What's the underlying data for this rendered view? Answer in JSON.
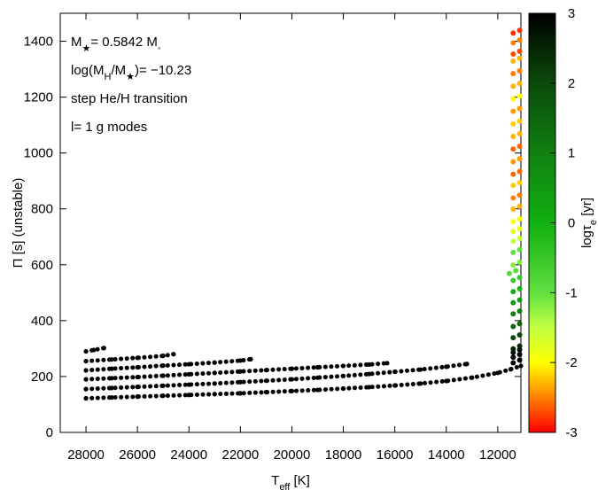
{
  "chart_data": {
    "type": "scatter",
    "annotations": [
      [
        {
          "text": "M"
        },
        {
          "text": "★",
          "sub": true
        },
        {
          "text": "= 0.5842 M"
        },
        {
          "text": "◦",
          "sub": true
        }
      ],
      [
        {
          "text": "log(M"
        },
        {
          "text": "H",
          "sub": true
        },
        {
          "text": "/M"
        },
        {
          "text": "★",
          "sub": true
        },
        {
          "text": ")= −10.23"
        }
      ],
      [
        {
          "text": "step He/H transition"
        }
      ],
      [
        {
          "text": "l= 1 g modes"
        }
      ]
    ],
    "x_label": [
      {
        "text": "T"
      },
      {
        "text": "eff",
        "sub": true
      },
      {
        "text": " [K]"
      }
    ],
    "y_label": [
      {
        "text": "Π [s] (unstable)"
      }
    ],
    "xlim": [
      29000,
      11100
    ],
    "ylim": [
      0,
      1500
    ],
    "xticks": [
      28000,
      26000,
      24000,
      22000,
      20000,
      18000,
      16000,
      14000,
      12000
    ],
    "yticks": [
      0,
      200,
      400,
      600,
      800,
      1000,
      1200,
      1400
    ],
    "series": [
      {
        "color": "#000000",
        "x": [
          28000,
          27000,
          26000,
          25000,
          24000,
          23000,
          22000,
          21000,
          20000,
          19000,
          18000,
          17000,
          16000,
          15000,
          14000,
          13000,
          12000,
          11500,
          11100
        ],
        "y": [
          122,
          125,
          128,
          131,
          134,
          137,
          140,
          144,
          148,
          152,
          157,
          162,
          168,
          175,
          184,
          196,
          213,
          226,
          238
        ]
      },
      {
        "color": "#000000",
        "x": [
          28000,
          27000,
          26000,
          25000,
          24000,
          23000,
          22000,
          21000,
          20000,
          19000,
          18000,
          17000,
          16000,
          15000,
          14000,
          13200
        ],
        "y": [
          155,
          159,
          163,
          167,
          171,
          175,
          180,
          185,
          190,
          196,
          202,
          209,
          217,
          225,
          235,
          245
        ]
      },
      {
        "color": "#000000",
        "x": [
          28000,
          27000,
          26000,
          25000,
          24000,
          23000,
          22000,
          21000,
          20000,
          19000,
          18000,
          17000,
          16300
        ],
        "y": [
          190,
          194,
          198,
          203,
          208,
          213,
          218,
          223,
          228,
          233,
          238,
          243,
          248
        ]
      },
      {
        "color": "#000000",
        "x": [
          28000,
          27000,
          26000,
          25000,
          24000,
          23000,
          22000,
          21600
        ],
        "y": [
          222,
          228,
          233,
          239,
          244,
          250,
          257,
          262
        ]
      },
      {
        "color": "#000000",
        "x": [
          28000,
          27000,
          26000,
          25000,
          24600
        ],
        "y": [
          255,
          261,
          267,
          274,
          280
        ]
      },
      {
        "color": "#000000",
        "x": [
          28000,
          27700,
          27300
        ],
        "y": [
          290,
          295,
          302
        ]
      }
    ],
    "points": {
      "x": [
        11400,
        11150,
        11400,
        11150,
        11400,
        11150,
        11400,
        11150,
        11400,
        11150,
        11400,
        11150,
        11400,
        11150,
        11400,
        11150,
        11400,
        11150,
        11400,
        11150,
        11550,
        11300,
        11400,
        11150,
        11400,
        11150,
        11400,
        11150,
        11400,
        11150,
        11400,
        11150,
        11400,
        11150,
        11400,
        11150,
        11400,
        11150,
        11400,
        11150,
        11400,
        11150,
        11400,
        11150,
        11400,
        11150,
        11400,
        11150,
        11400,
        11150,
        11400,
        11150,
        11400,
        11150,
        11400,
        11150,
        11400,
        11150,
        11400,
        11150,
        11400,
        11150,
        11400,
        11150
      ],
      "y": [
        249,
        259,
        269,
        279,
        286,
        296,
        299,
        309,
        339,
        349,
        379,
        389,
        424,
        434,
        464,
        474,
        504,
        514,
        544,
        554,
        569,
        579,
        599,
        609,
        644,
        654,
        684,
        694,
        719,
        729,
        754,
        764,
        799,
        809,
        839,
        849,
        884,
        894,
        924,
        934,
        969,
        979,
        1014,
        1024,
        1059,
        1069,
        1104,
        1114,
        1149,
        1159,
        1194,
        1204,
        1239,
        1249,
        1284,
        1294,
        1329,
        1339,
        1354,
        1364,
        1394,
        1404,
        1429,
        1439
      ],
      "c": [
        3,
        3,
        3,
        3,
        2.8,
        2.8,
        2.5,
        2.5,
        2,
        2,
        1.5,
        1.5,
        1,
        1,
        0.5,
        0.5,
        0,
        0,
        -0.5,
        -0.5,
        -0.9,
        -0.9,
        -1.2,
        -1.2,
        -1,
        -1,
        -1.5,
        -1.5,
        -1.8,
        -1.8,
        -2,
        -2,
        -2.3,
        -2.3,
        -2.5,
        -2.5,
        -2.2,
        -2.2,
        -2.6,
        -2.6,
        -2.4,
        -2.4,
        -2.6,
        -2.6,
        -2.3,
        -2.3,
        -2.2,
        -2.2,
        -2.4,
        -2.4,
        -2,
        -2,
        -2.3,
        -2.3,
        -2.5,
        -2.5,
        -2.3,
        -2.3,
        -2.7,
        -2.7,
        -2.5,
        -2.5,
        -2.8,
        -2.8
      ]
    },
    "colorbar": {
      "clim": [
        -3,
        3
      ],
      "ticks": [
        -3,
        -2,
        -1,
        0,
        1,
        2,
        3
      ],
      "label": [
        {
          "text": "logτ"
        },
        {
          "text": "e",
          "sub": true
        },
        {
          "text": " [yr]"
        }
      ],
      "stops": [
        -3,
        -2.5,
        -2,
        -1.5,
        -1,
        0,
        1,
        2,
        3
      ],
      "colors": [
        "#ff0000",
        "#ff8000",
        "#ffff00",
        "#c0ff40",
        "#60e040",
        "#10b010",
        "#108010",
        "#0a4a0a",
        "#000000"
      ]
    }
  }
}
